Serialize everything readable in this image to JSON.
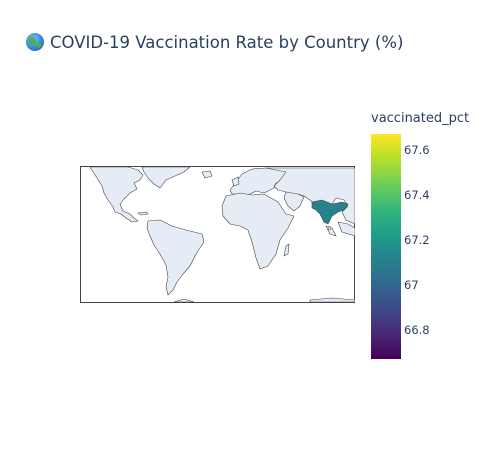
{
  "title": "COVID-19 Vaccination Rate by Country (%)",
  "title_icon": "globe-icon",
  "colorbar": {
    "title": "vaccinated_pct",
    "colorscale": "viridis",
    "min": 66.67,
    "max": 67.67,
    "ticks": [
      "67.6",
      "67.4",
      "67.2",
      "67",
      "66.8"
    ],
    "tick_values": [
      67.6,
      67.4,
      67.2,
      67.0,
      66.8
    ]
  },
  "chart_data": {
    "type": "choropleth",
    "title": "COVID-19 Vaccination Rate by Country (%)",
    "color_label": "vaccinated_pct",
    "locations": [
      {
        "country": "India",
        "vaccinated_pct": 67.2
      }
    ],
    "land_color": "#e5ecf6",
    "border_color": "#444444",
    "highlight_color": "#26828e"
  }
}
